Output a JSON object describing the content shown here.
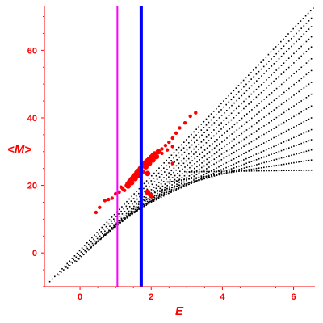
{
  "chart_data": {
    "type": "scatter",
    "xlabel": "E",
    "ylabel": "<M>",
    "xlim": [
      -1,
      6.6
    ],
    "ylim": [
      -10,
      73
    ],
    "x_ticks": [
      "0",
      "2",
      "4",
      "6"
    ],
    "x_tick_values": [
      0,
      2,
      4,
      6
    ],
    "y_ticks": [
      "0",
      "20",
      "40",
      "60"
    ],
    "y_tick_values": [
      0,
      20,
      40,
      60
    ],
    "grid": false,
    "legend": "none",
    "colors": {
      "axis": "#ff0000",
      "black_points": "#000000",
      "red_points": "#ff0000",
      "vline_1": "#ff00ff",
      "vline_2": "#0000ff"
    },
    "reference_lines": [
      {
        "orientation": "vertical",
        "x": 1.05,
        "color": "#ff00ff"
      },
      {
        "orientation": "vertical",
        "x": 1.72,
        "color": "#0000ff"
      }
    ],
    "series": [
      {
        "color": "#000000",
        "marker": "small-dot",
        "bands": [
          {
            "x0": -0.85,
            "y0": -8.5,
            "x1": 6.55,
            "y1": 72.5
          },
          {
            "x0": -0.6,
            "y0": -6.5,
            "x1": 6.5,
            "y1": 69.5
          },
          {
            "x0": -0.35,
            "y0": -4.5,
            "x1": 6.5,
            "y1": 67.0
          },
          {
            "x0": -0.1,
            "y0": -2.5,
            "x1": 6.5,
            "y1": 64.0
          },
          {
            "x0": 0.1,
            "y0": -0.5,
            "x1": 6.5,
            "y1": 61.0
          },
          {
            "x0": 0.3,
            "y0": 1.5,
            "x1": 6.5,
            "y1": 57.5
          },
          {
            "x0": 0.5,
            "y0": 3.5,
            "x1": 6.5,
            "y1": 54.0
          },
          {
            "x0": 0.7,
            "y0": 5.5,
            "x1": 6.5,
            "y1": 50.5
          },
          {
            "x0": 0.9,
            "y0": 7.5,
            "x1": 6.5,
            "y1": 47.0
          },
          {
            "x0": 1.1,
            "y0": 9.5,
            "x1": 6.5,
            "y1": 43.5
          },
          {
            "x0": 1.3,
            "y0": 11.0,
            "x1": 6.5,
            "y1": 40.0
          },
          {
            "x0": 1.5,
            "y0": 13.0,
            "x1": 6.5,
            "y1": 36.5
          },
          {
            "x0": 1.8,
            "y0": 15.5,
            "x1": 6.5,
            "y1": 33.5
          },
          {
            "x0": 2.1,
            "y0": 18.0,
            "x1": 6.5,
            "y1": 30.5
          },
          {
            "x0": 2.5,
            "y0": 21.0,
            "x1": 6.5,
            "y1": 27.5
          },
          {
            "x0": 3.0,
            "y0": 24.0,
            "x1": 6.5,
            "y1": 24.5
          }
        ]
      },
      {
        "color": "#ff0000",
        "marker": "filled-circle",
        "points": [
          [
            0.45,
            12.0
          ],
          [
            0.55,
            13.5
          ],
          [
            0.7,
            15.5
          ],
          [
            0.8,
            15.8
          ],
          [
            0.9,
            16.2
          ],
          [
            1.0,
            17.5
          ],
          [
            1.1,
            18.0
          ],
          [
            1.2,
            19.0
          ],
          [
            1.3,
            20.0
          ],
          [
            1.35,
            20.5
          ],
          [
            1.4,
            21.2
          ],
          [
            1.45,
            21.8
          ],
          [
            1.5,
            22.5
          ],
          [
            1.55,
            23.0
          ],
          [
            1.6,
            23.8
          ],
          [
            1.65,
            24.3
          ],
          [
            1.7,
            25.0
          ],
          [
            1.75,
            25.8
          ],
          [
            1.8,
            26.3
          ],
          [
            1.85,
            26.8
          ],
          [
            1.9,
            27.3
          ],
          [
            1.95,
            27.8
          ],
          [
            2.0,
            28.3
          ],
          [
            2.05,
            28.8
          ],
          [
            2.1,
            29.3
          ],
          [
            2.2,
            30.0
          ],
          [
            2.3,
            30.8
          ],
          [
            2.4,
            31.8
          ],
          [
            2.5,
            32.8
          ],
          [
            2.6,
            34.0
          ],
          [
            2.7,
            35.5
          ],
          [
            2.8,
            37.0
          ],
          [
            2.95,
            38.5
          ],
          [
            3.1,
            40.5
          ],
          [
            3.25,
            41.5
          ],
          [
            1.15,
            19.5
          ],
          [
            1.25,
            18.5
          ],
          [
            1.35,
            19.8
          ],
          [
            1.45,
            20.8
          ],
          [
            1.55,
            22.0
          ],
          [
            1.65,
            23.0
          ],
          [
            1.75,
            24.0
          ],
          [
            1.85,
            25.5
          ],
          [
            1.95,
            26.5
          ],
          [
            2.05,
            27.5
          ],
          [
            2.15,
            28.5
          ],
          [
            2.3,
            29.5
          ],
          [
            2.45,
            30.5
          ],
          [
            2.6,
            31.5
          ],
          [
            1.9,
            23.5
          ],
          [
            1.9,
            18.0
          ],
          [
            2.0,
            17.0
          ],
          [
            2.6,
            26.5
          ]
        ]
      }
    ]
  }
}
